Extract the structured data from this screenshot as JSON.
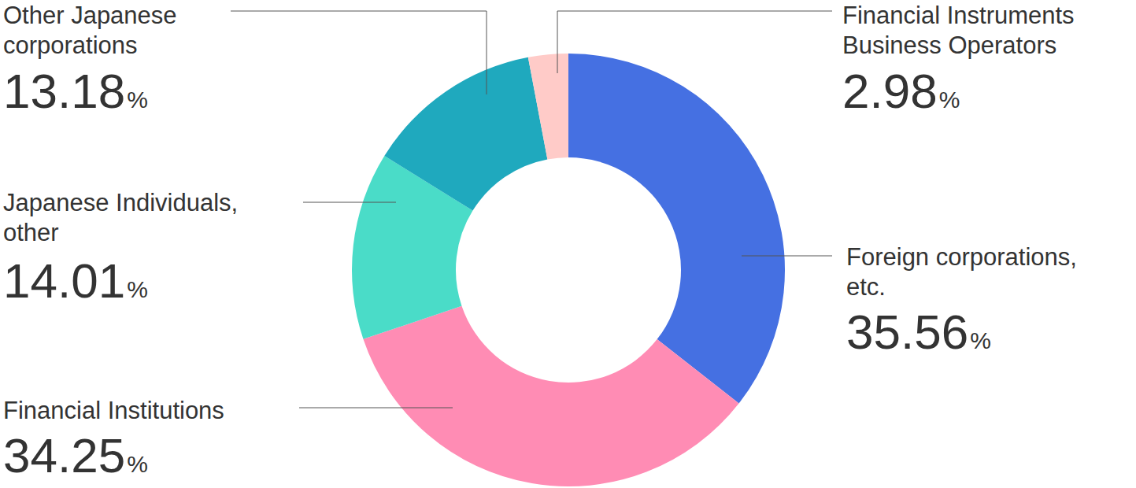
{
  "chart_data": {
    "type": "donut",
    "categories": [
      "Foreign corporations, etc.",
      "Financial Institutions",
      "Japanese Individuals, other",
      "Other Japanese corporations",
      "Financial Instruments Business Operators"
    ],
    "values": [
      35.56,
      34.25,
      14.01,
      13.18,
      2.98
    ],
    "value_labels": [
      "35.56%",
      "34.25%",
      "14.01%",
      "13.18%",
      "2.98%"
    ],
    "colors": [
      "#4570e2",
      "#ff8cb4",
      "#4adcc8",
      "#1fa9be",
      "#ffcbc8"
    ],
    "data_labels": true
  }
}
